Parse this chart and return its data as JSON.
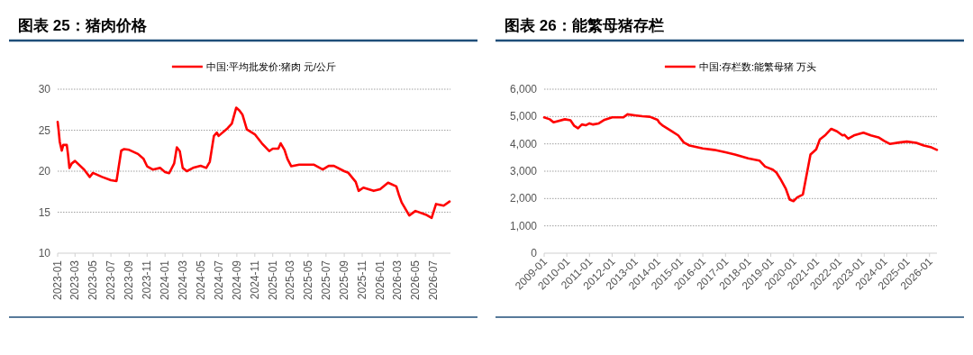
{
  "chart_data": [
    {
      "type": "line",
      "title": "图表 25：猪肉价格",
      "grid": "y",
      "legend": "top",
      "xlim": [
        "2023-01",
        "2026-08-28"
      ],
      "ylim": [
        10,
        30
      ],
      "yticks": [
        10,
        15,
        20,
        25,
        30
      ],
      "xticks": [
        "2023-01",
        "2023-03",
        "2023-05",
        "2023-07",
        "2023-09",
        "2023-11",
        "2024-01",
        "2024-03",
        "2024-05",
        "2024-07",
        "2024-09",
        "2024-11",
        "2025-01",
        "2025-03",
        "2025-05",
        "2025-07",
        "2025-09",
        "2025-11",
        "2026-01",
        "2026-03",
        "2026-05",
        "2026-07"
      ],
      "x": [
        "2023-01-01",
        "2023-01-04",
        "2023-01-08",
        "2023-01-15",
        "2023-01-20",
        "2023-02-01",
        "2023-02-05",
        "2023-02-10",
        "2023-02-18",
        "2023-03-01",
        "2023-04-01",
        "2023-04-20",
        "2023-05-01",
        "2023-06-01",
        "2023-07-01",
        "2023-07-20",
        "2023-08-05",
        "2023-08-15",
        "2023-09-01",
        "2023-10-01",
        "2023-10-20",
        "2023-11-01",
        "2023-11-20",
        "2023-12-15",
        "2024-01-01",
        "2024-01-15",
        "2024-02-01",
        "2024-02-10",
        "2024-02-20",
        "2024-03-01",
        "2024-03-15",
        "2024-04-05",
        "2024-05-01",
        "2024-05-20",
        "2024-06-01",
        "2024-06-15",
        "2024-06-25",
        "2024-07-01",
        "2024-08-01",
        "2024-08-15",
        "2024-08-30",
        "2024-09-10",
        "2024-09-20",
        "2024-10-05",
        "2024-11-01",
        "2024-11-25",
        "2024-12-20",
        "2025-01-01",
        "2025-01-20",
        "2025-01-28",
        "2025-02-10",
        "2025-02-20",
        "2025-03-05",
        "2025-04-01",
        "2025-05-20",
        "2025-06-20",
        "2025-07-10",
        "2025-07-28",
        "2025-09-01",
        "2025-09-15",
        "2025-10-10",
        "2025-10-20",
        "2025-11-05",
        "2025-12-10",
        "2026-01-01",
        "2026-01-28",
        "2026-02-25",
        "2026-03-05",
        "2026-03-15",
        "2026-04-10",
        "2026-05-01",
        "2026-06-05",
        "2026-06-25",
        "2026-07-10",
        "2026-08-05",
        "2026-08-25"
      ],
      "series": [
        {
          "name": "中国:平均批发价:猪肉 元/公斤",
          "color": "#ff0000",
          "values": [
            26.0,
            25.1,
            23.6,
            22.5,
            23.2,
            23.2,
            22.1,
            20.4,
            20.95,
            21.25,
            20.2,
            19.3,
            19.8,
            19.3,
            18.9,
            18.8,
            22.5,
            22.7,
            22.6,
            22.1,
            21.5,
            20.6,
            20.2,
            20.4,
            19.9,
            19.75,
            20.95,
            22.9,
            22.45,
            20.4,
            20.0,
            20.4,
            20.65,
            20.4,
            21.15,
            24.3,
            24.7,
            24.3,
            25.25,
            25.8,
            27.75,
            27.4,
            26.9,
            25.1,
            24.5,
            23.4,
            22.45,
            22.75,
            22.75,
            23.4,
            22.6,
            21.5,
            20.6,
            20.8,
            20.8,
            20.2,
            20.65,
            20.65,
            20.0,
            19.8,
            18.7,
            17.6,
            18.0,
            17.6,
            17.8,
            18.6,
            18.15,
            17.2,
            16.2,
            14.6,
            15.15,
            14.7,
            14.3,
            16.0,
            15.8,
            16.3
          ]
        }
      ]
    },
    {
      "type": "line",
      "title": "图表 26：能繁母猪存栏",
      "grid": "y",
      "legend": "top",
      "xlim": [
        "2009-01",
        "2026-05"
      ],
      "ylim": [
        0,
        6000
      ],
      "yticks": [
        0,
        {
          "value": 1000,
          "label": "1,000"
        },
        {
          "value": 2000,
          "label": "2,000"
        },
        {
          "value": 3000,
          "label": "3,000"
        },
        {
          "value": 4000,
          "label": "4,000"
        },
        {
          "value": 5000,
          "label": "5,000"
        },
        {
          "value": 6000,
          "label": "6,000"
        }
      ],
      "xticks": [
        "2009-01",
        "2010-01",
        "2011-01",
        "2012-01",
        "2013-01",
        "2014-01",
        "2015-01",
        "2016-01",
        "2017-01",
        "2018-01",
        "2019-01",
        "2020-01",
        "2021-01",
        "2022-01",
        "2023-01",
        "2024-01",
        "2025-01",
        "2026-01"
      ],
      "x": [
        "2009-01",
        "2009-04",
        "2009-06",
        "2009-12",
        "2010-03",
        "2010-05",
        "2010-07",
        "2010-09",
        "2010-11",
        "2011-01",
        "2011-03",
        "2011-06",
        "2011-09",
        "2012-01",
        "2012-07",
        "2012-09",
        "2013-01",
        "2013-05",
        "2013-09",
        "2014-01",
        "2014-02",
        "2014-04",
        "2014-08",
        "2014-12",
        "2015-03",
        "2015-06",
        "2016-01",
        "2016-07",
        "2017-01",
        "2017-06",
        "2018-01",
        "2018-04",
        "2018-07",
        "2018-10",
        "2019-02",
        "2019-04",
        "2019-06",
        "2019-09",
        "2019-11",
        "2020-01",
        "2020-03",
        "2020-06",
        "2020-10",
        "2021-01",
        "2021-03",
        "2021-06",
        "2021-09",
        "2021-12",
        "2022-03",
        "2022-04",
        "2022-06",
        "2022-09",
        "2023-02",
        "2023-06",
        "2023-10",
        "2024-01",
        "2024-04",
        "2024-09",
        "2025-01",
        "2025-06",
        "2025-10",
        "2026-02",
        "2026-05"
      ],
      "series": [
        {
          "name": "中国:存栏数:能繁母猪 万头",
          "color": "#ff0000",
          "values": [
            4967,
            4900,
            4790,
            4900,
            4860,
            4660,
            4570,
            4710,
            4680,
            4750,
            4710,
            4750,
            4880,
            4970,
            4970,
            5080,
            5045,
            5010,
            4990,
            4880,
            4770,
            4660,
            4490,
            4310,
            4050,
            3940,
            3830,
            3780,
            3690,
            3610,
            3470,
            3430,
            3390,
            3170,
            3060,
            2950,
            2730,
            2350,
            1960,
            1905,
            2040,
            2150,
            3610,
            3800,
            4160,
            4330,
            4550,
            4460,
            4310,
            4330,
            4190,
            4310,
            4410,
            4310,
            4240,
            4110,
            4000,
            4050,
            4085,
            4040,
            3940,
            3870,
            3780
          ]
        }
      ]
    }
  ]
}
